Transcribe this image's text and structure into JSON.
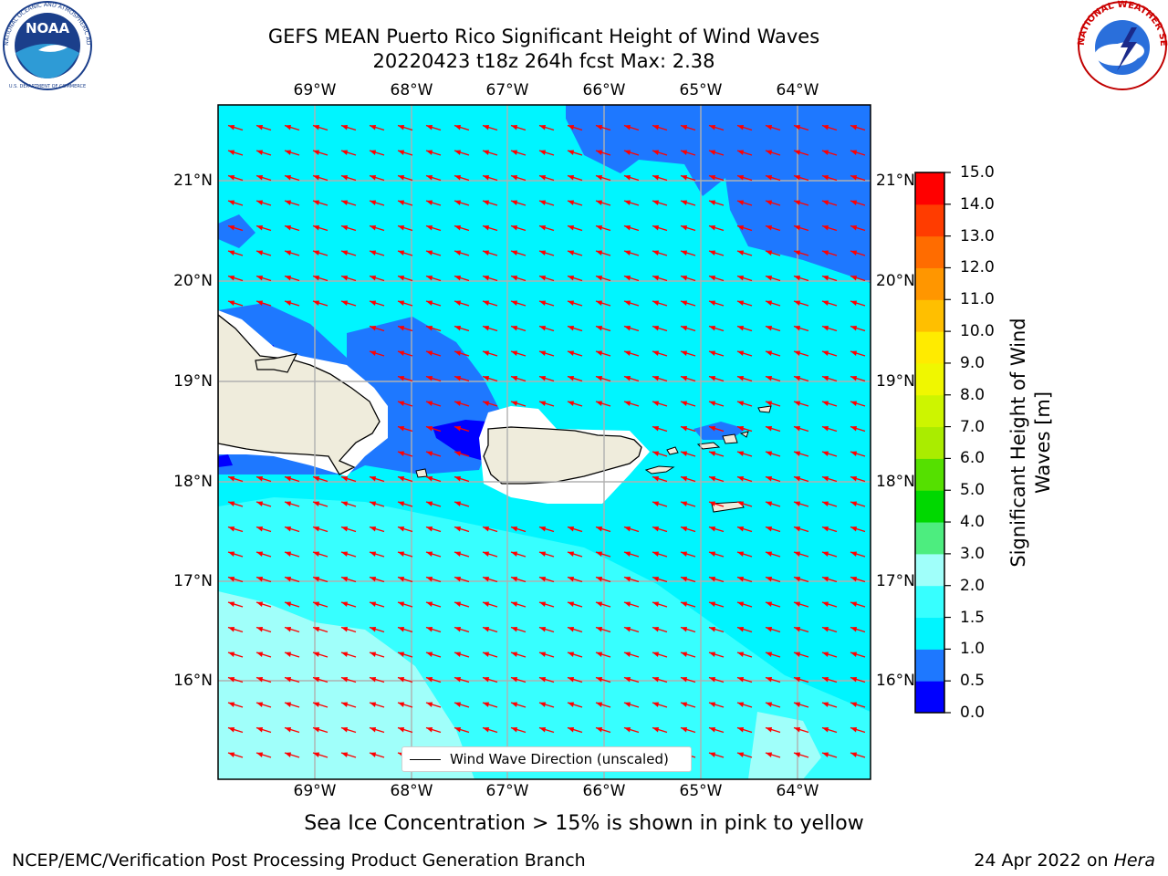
{
  "header": {
    "title_line1": "GEFS MEAN Puerto Rico Significant Height of Wind Waves",
    "title_line2": "20220423 t18z 264h fcst   Max: 2.38"
  },
  "logos": {
    "noaa_text": "NOAA",
    "noaa_ring": "NATIONAL OCEANIC AND ATMOSPHERIC ADMINISTRATION",
    "noaa_ring_bottom": "U.S. DEPARTMENT OF COMMERCE",
    "nws_ring": "NATIONAL WEATHER SERVICE"
  },
  "map": {
    "lon_labels": [
      "69°W",
      "68°W",
      "67°W",
      "66°W",
      "65°W",
      "64°W"
    ],
    "lat_labels": [
      "21°N",
      "20°N",
      "19°N",
      "18°N",
      "17°N",
      "16°N"
    ],
    "legend_label": "Wind Wave Direction (unscaled)",
    "arrow_color": "#ff0000",
    "land_color": "#efecdc"
  },
  "colorbar": {
    "label_line1": "Significant Height of Wind",
    "label_line2": "Waves [m]",
    "ticks": [
      "15.0",
      "14.0",
      "13.0",
      "12.0",
      "11.0",
      "10.0",
      "9.0",
      "8.0",
      "7.0",
      "6.0",
      "5.0",
      "4.0",
      "3.0",
      "2.0",
      "1.5",
      "1.0",
      "0.5",
      "0.0"
    ],
    "bins": [
      {
        "range": "0.0-0.5",
        "color": "#0000ff"
      },
      {
        "range": "0.5-1.0",
        "color": "#1e78ff"
      },
      {
        "range": "1.0-1.5",
        "color": "#00f5ff"
      },
      {
        "range": "1.5-2.0",
        "color": "#37ffff"
      },
      {
        "range": "2.0-3.0",
        "color": "#a0fffa"
      },
      {
        "range": "3.0-4.0",
        "color": "#4ded7f"
      },
      {
        "range": "4.0-5.0",
        "color": "#00d800"
      },
      {
        "range": "5.0-6.0",
        "color": "#55e000"
      },
      {
        "range": "6.0-7.0",
        "color": "#aaec00"
      },
      {
        "range": "7.0-8.0",
        "color": "#cdf500"
      },
      {
        "range": "8.0-9.0",
        "color": "#f0f700"
      },
      {
        "range": "9.0-10.0",
        "color": "#ffeb00"
      },
      {
        "range": "10.0-11.0",
        "color": "#ffbf00"
      },
      {
        "range": "11.0-12.0",
        "color": "#ff9600"
      },
      {
        "range": "12.0-13.0",
        "color": "#ff6c00"
      },
      {
        "range": "13.0-14.0",
        "color": "#ff3c00"
      },
      {
        "range": "14.0-15.0",
        "color": "#ff0000"
      }
    ]
  },
  "bottom_note": "Sea Ice Concentration > 15% is shown in pink to yellow",
  "footer": {
    "left": "NCEP/EMC/Verification Post Processing Product Generation Branch",
    "right_prefix": "24 Apr 2022 on ",
    "right_host": "Hera"
  }
}
